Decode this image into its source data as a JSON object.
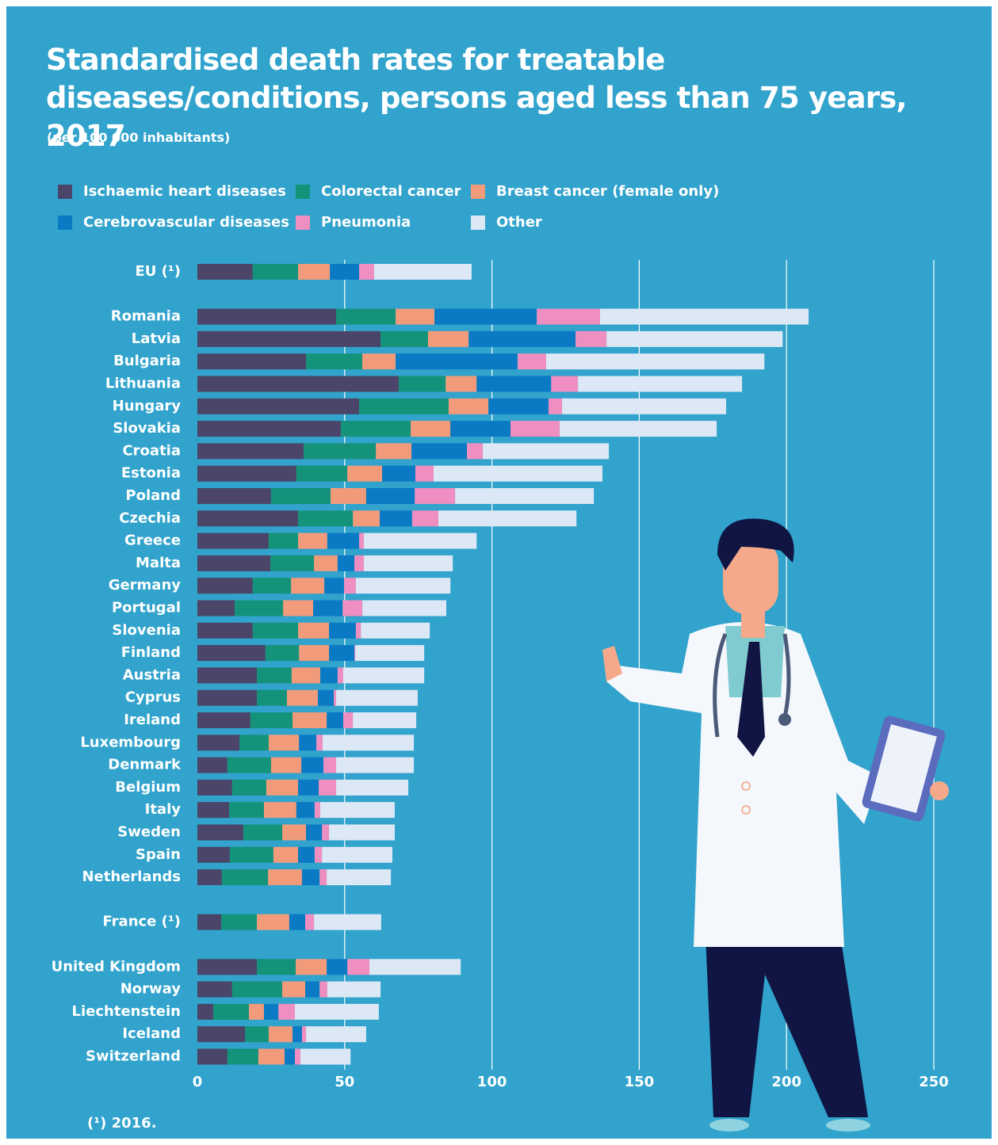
{
  "chart_data": {
    "type": "stacked-barh",
    "title": "Standardised death rates for treatable diseases/conditions, persons aged less than 75 years, 2017",
    "subtitle": "(per 100 000 inhabitants)",
    "footnote": "(¹) 2016.",
    "categories": [
      "EU (¹)",
      "Romania",
      "Latvia",
      "Bulgaria",
      "Lithuania",
      "Hungary",
      "Slovakia",
      "Croatia",
      "Estonia",
      "Poland",
      "Czechia",
      "Greece",
      "Malta",
      "Germany",
      "Portugal",
      "Slovenia",
      "Finland",
      "Austria",
      "Cyprus",
      "Ireland",
      "Luxembourg",
      "Denmark",
      "Belgium",
      "Italy",
      "Sweden",
      "Spain",
      "Netherlands",
      "France (¹)",
      "United Kingdom",
      "Norway",
      "Liechtenstein",
      "Iceland",
      "Switzerland"
    ],
    "series": [
      {
        "name": "Ischaemic heart diseases",
        "color": "#4a4569",
        "values": [
          18.8,
          47.1,
          62.2,
          36.9,
          68.4,
          54.9,
          48.7,
          36.1,
          33.6,
          25,
          34.2,
          24.2,
          24.8,
          18.8,
          12.7,
          18.8,
          23.1,
          20.2,
          20.2,
          18,
          14.3,
          10.2,
          11.8,
          10.8,
          15.6,
          11,
          8.3,
          8.1,
          20.2,
          11.8,
          5.4,
          16.2,
          10.2
        ]
      },
      {
        "name": "Colorectal cancer",
        "color": "#14937a",
        "values": [
          15.4,
          20.2,
          16.1,
          19.1,
          15.9,
          30.4,
          23.7,
          24.5,
          17.3,
          20.2,
          18.6,
          10,
          14.8,
          13,
          16.4,
          15.4,
          11.4,
          11.8,
          10.2,
          14.3,
          9.9,
          14.8,
          11.6,
          11.8,
          13.2,
          14.8,
          15.7,
          12.1,
          13.2,
          17,
          12.1,
          8,
          10.5
        ]
      },
      {
        "name": "Breast cancer (female only)",
        "color": "#f29b7a",
        "values": [
          10.8,
          13.2,
          13.8,
          11.3,
          10.5,
          13.5,
          13.5,
          12.1,
          11.8,
          12.1,
          9.1,
          9.9,
          8,
          11.3,
          10.2,
          10.5,
          10.2,
          9.7,
          10.5,
          11.6,
          10.3,
          10.3,
          10.8,
          11,
          8.1,
          8.4,
          11.5,
          11,
          10.5,
          7.8,
          5.1,
          8.1,
          8.9
        ]
      },
      {
        "name": "Cerebrovascular diseases",
        "color": "#0a7ac4",
        "values": [
          9.9,
          34.7,
          36.3,
          41.4,
          25.3,
          20.4,
          20.4,
          18.8,
          11.3,
          16.5,
          11,
          10.8,
          5.7,
          6.7,
          10,
          9.1,
          8.6,
          5.9,
          5.4,
          5.6,
          5.9,
          7.5,
          7,
          6.2,
          5.4,
          5.6,
          6,
          5.4,
          7,
          4.9,
          4.9,
          3.2,
          3.5
        ]
      },
      {
        "name": "Pneumonia",
        "color": "#ef8ec0",
        "values": [
          5.1,
          21.5,
          10.5,
          9.7,
          9.1,
          4.6,
          16.7,
          5.4,
          6.2,
          13.7,
          8.9,
          1.6,
          3.2,
          4,
          6.7,
          1.7,
          0.3,
          1.9,
          0.8,
          3.3,
          2.1,
          4.3,
          5.9,
          1.9,
          2.4,
          2.5,
          2.4,
          3,
          7.5,
          2.6,
          5.6,
          1.4,
          1.9
        ]
      },
      {
        "name": "Other",
        "color": "#dde8f6",
        "values": [
          33.1,
          70.8,
          59.8,
          74.1,
          55.7,
          55.7,
          53.3,
          42.8,
          57.3,
          47.1,
          46.9,
          38.3,
          30.2,
          32.1,
          28.5,
          23.4,
          23.4,
          27.5,
          27.7,
          21.5,
          31,
          26.4,
          24.5,
          25.3,
          22.3,
          23.9,
          21.8,
          22.8,
          31,
          18.1,
          28.5,
          20.4,
          17
        ]
      }
    ],
    "xlim": [
      0,
      250
    ],
    "xticks": [
      0,
      50,
      100,
      150,
      200,
      250
    ],
    "grid": true
  }
}
